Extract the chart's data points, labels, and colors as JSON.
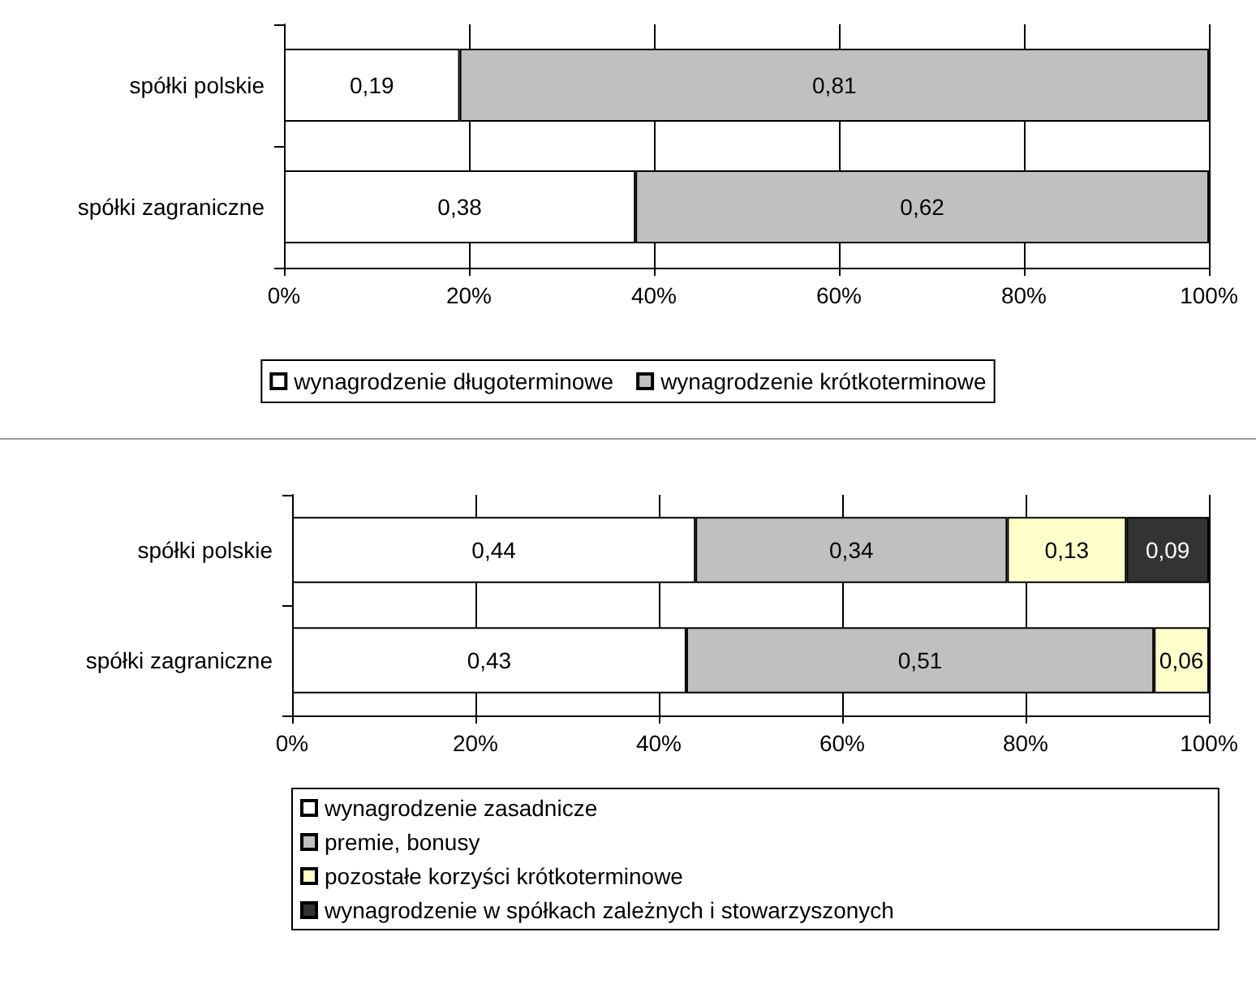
{
  "chart_data": [
    {
      "type": "bar",
      "orientation": "horizontal",
      "stacked": true,
      "categories": [
        "spółki polskie",
        "spółki zagraniczne"
      ],
      "series": [
        {
          "name": "wynagrodzenie długoterminowe",
          "color": "#ffffff",
          "values": [
            0.19,
            0.38
          ],
          "value_labels": [
            "0,19",
            "0,38"
          ]
        },
        {
          "name": "wynagrodzenie krótkoterminowe",
          "color": "#c0c0c0",
          "values": [
            0.81,
            0.62
          ],
          "value_labels": [
            "0,81",
            "0,62"
          ]
        }
      ],
      "xlim": [
        0,
        1
      ],
      "xticks": [
        {
          "value": 0,
          "label": "0%"
        },
        {
          "value": 0.2,
          "label": "20%"
        },
        {
          "value": 0.4,
          "label": "40%"
        },
        {
          "value": 0.6,
          "label": "60%"
        },
        {
          "value": 0.8,
          "label": "80%"
        },
        {
          "value": 1,
          "label": "100%"
        }
      ],
      "grid": "x",
      "legend": "bottom"
    },
    {
      "type": "bar",
      "orientation": "horizontal",
      "stacked": true,
      "categories": [
        "spółki polskie",
        "spółki zagraniczne"
      ],
      "series": [
        {
          "name": "wynagrodzenie zasadnicze",
          "color": "#ffffff",
          "values": [
            0.44,
            0.43
          ],
          "value_labels": [
            "0,44",
            "0,43"
          ]
        },
        {
          "name": "premie, bonusy",
          "color": "#c0c0c0",
          "values": [
            0.34,
            0.51
          ],
          "value_labels": [
            "0,34",
            "0,51"
          ]
        },
        {
          "name": "pozostałe korzyści krótkoterminowe",
          "color": "#ffffcc",
          "values": [
            0.13,
            0.06
          ],
          "value_labels": [
            "0,13",
            "0,06"
          ]
        },
        {
          "name": "wynagrodzenie w spółkach zależnych i stowarzyszonych",
          "color": "#333333",
          "values": [
            0.09,
            null
          ],
          "value_labels": [
            "0,09",
            null
          ]
        }
      ],
      "xlim": [
        0,
        1
      ],
      "xticks": [
        {
          "value": 0,
          "label": "0%"
        },
        {
          "value": 0.2,
          "label": "20%"
        },
        {
          "value": 0.4,
          "label": "40%"
        },
        {
          "value": 0.6,
          "label": "60%"
        },
        {
          "value": 0.8,
          "label": "80%"
        },
        {
          "value": 1,
          "label": "100%"
        }
      ],
      "grid": "x",
      "legend": "bottom"
    }
  ]
}
